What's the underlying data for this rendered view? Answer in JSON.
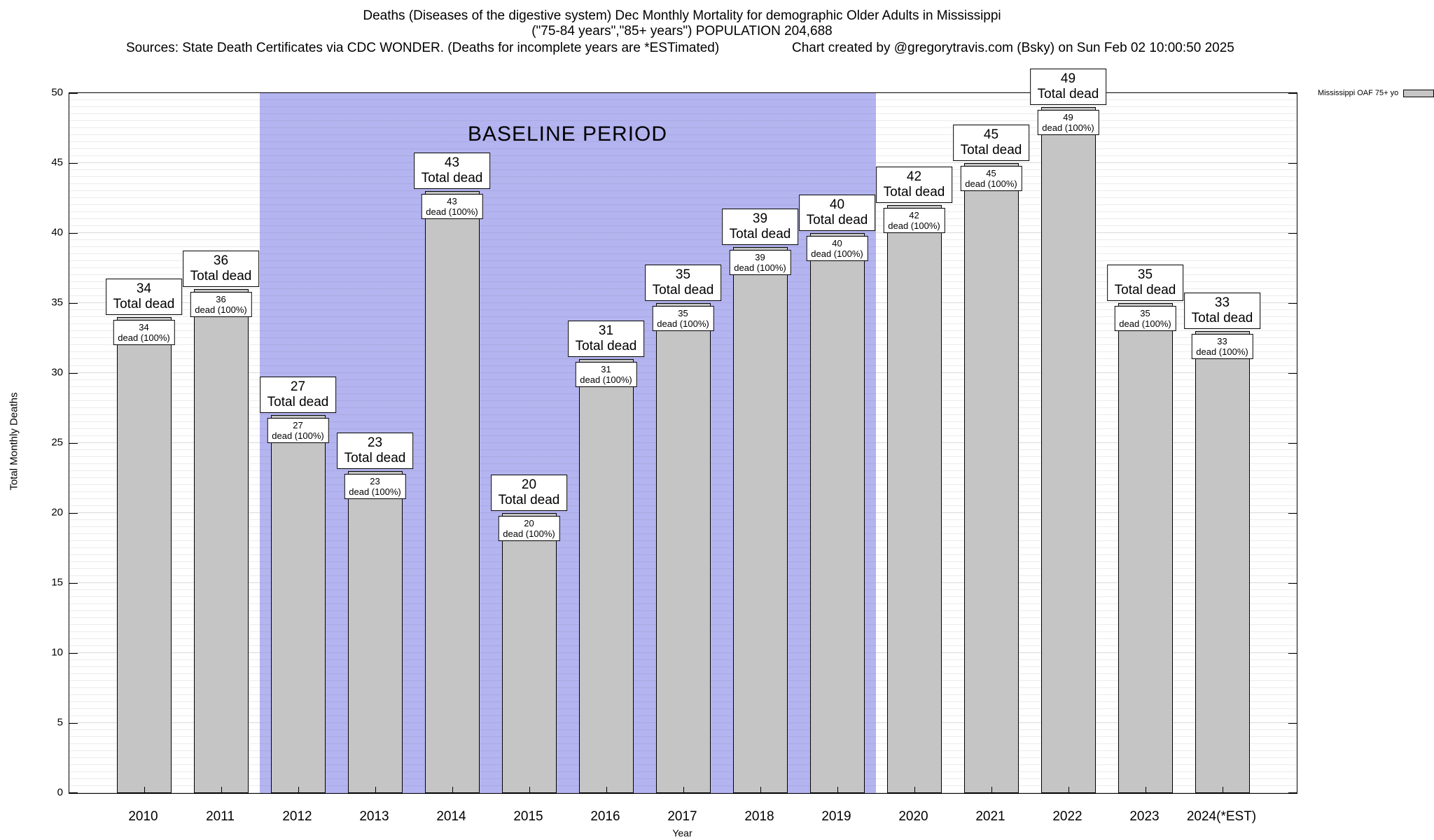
{
  "header": {
    "title_line1": "Deaths (Diseases of the digestive system) Dec Monthly Mortality for demographic Older Adults in Mississippi",
    "title_line2": "(\"75-84 years\",\"85+ years\") POPULATION 204,688",
    "sources": "Sources: State Death Certificates via CDC WONDER. (Deaths for incomplete years are *ESTimated)",
    "credit": "Chart created by @gregorytravis.com (Bsky) on Sun Feb 02 10:00:50 2025"
  },
  "chart_data": {
    "type": "bar",
    "title": "Deaths (Diseases of the digestive system) Dec Monthly Mortality for demographic Older Adults in Mississippi",
    "subtitle": "(\"75-84 years\",\"85+ years\") POPULATION 204,688",
    "xlabel": "Year",
    "ylabel": "Total Monthly Deaths",
    "ylim": [
      0,
      50
    ],
    "ytick_step": 5,
    "grid": "minor horizontal lines every 0.5, major every 5",
    "categories": [
      "2010",
      "2011",
      "2012",
      "2013",
      "2014",
      "2015",
      "2016",
      "2017",
      "2018",
      "2019",
      "2020",
      "2021",
      "2022",
      "2023",
      "2024(*EST)"
    ],
    "values": [
      34,
      36,
      27,
      23,
      43,
      20,
      31,
      35,
      39,
      40,
      42,
      45,
      49,
      35,
      33
    ],
    "bar_top_label_suffix": "Total dead",
    "bar_inner_label_suffix": "dead (100%)",
    "bar_inner_percent": "100%",
    "bar_color": "#c5c5c5",
    "baseline": {
      "label": "BASELINE PERIOD",
      "start_category": "2012",
      "end_category": "2019",
      "start_index": 2,
      "end_index": 9,
      "color": "#b4b4f0"
    },
    "legend": {
      "label": "Mississippi OAF 75+ yo",
      "swatch_color": "#c5c5c5",
      "position": "top-right-outside"
    }
  }
}
